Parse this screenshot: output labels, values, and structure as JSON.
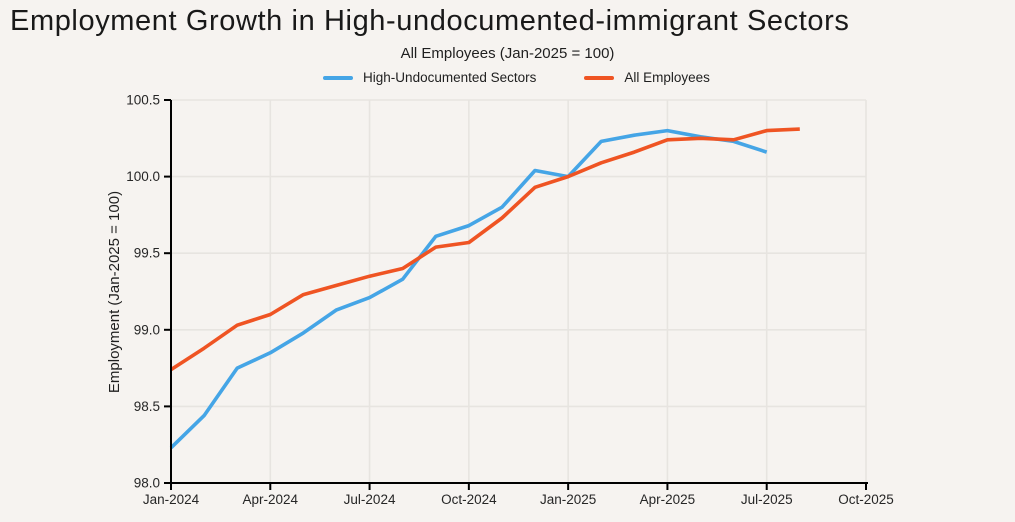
{
  "header": {
    "title": "Employment Growth in High-undocumented-immigrant Sectors",
    "subtitle": "All Employees (Jan-2025 = 100)"
  },
  "colors": {
    "background": "#F6F3F0",
    "grid": "#E7E4E0",
    "axis": "#000000",
    "title_text": "#191919",
    "tick_text": "#262626",
    "blue_series": "#45A5E6",
    "orange_series": "#EF5423"
  },
  "chart_data": {
    "type": "line",
    "title": "Employment Growth in High-undocumented-immigrant Sectors",
    "subtitle": "All Employees (Jan-2025 = 100)",
    "xlabel": "",
    "ylabel": "Employment (Jan-2025 = 100)",
    "ylim": [
      98.0,
      100.5
    ],
    "y_tick_labels": [
      "98.0",
      "98.5",
      "99.0",
      "99.5",
      "100.0",
      "100.5"
    ],
    "x_tick_labels": [
      "Jan-2024",
      "Apr-2024",
      "Jul-2024",
      "Oct-2024",
      "Jan-2025",
      "Apr-2025",
      "Jul-2025",
      "Oct-2025"
    ],
    "x_tick_positions": [
      0,
      3,
      6,
      9,
      12,
      15,
      18,
      21
    ],
    "x_axis_month_span": 21,
    "grid": true,
    "legend_position": "top-center",
    "months": [
      "Jan-2024",
      "Feb-2024",
      "Mar-2024",
      "Apr-2024",
      "May-2024",
      "Jun-2024",
      "Jul-2024",
      "Aug-2024",
      "Sep-2024",
      "Oct-2024",
      "Nov-2024",
      "Dec-2024",
      "Jan-2025",
      "Feb-2025",
      "Mar-2025",
      "Apr-2025",
      "May-2025",
      "Jun-2025",
      "Jul-2025",
      "Aug-2025"
    ],
    "series": [
      {
        "name": "High-Undocumented Sectors",
        "color": "#45A5E6",
        "values": [
          98.23,
          98.44,
          98.75,
          98.85,
          98.98,
          99.13,
          99.21,
          99.33,
          99.61,
          99.68,
          99.8,
          100.04,
          100.0,
          100.23,
          100.27,
          100.3,
          100.26,
          100.23,
          100.16
        ]
      },
      {
        "name": "All Employees",
        "color": "#EF5423",
        "values": [
          98.74,
          98.88,
          99.03,
          99.1,
          99.23,
          99.29,
          99.35,
          99.4,
          99.54,
          99.57,
          99.73,
          99.93,
          100.0,
          100.09,
          100.16,
          100.24,
          100.25,
          100.24,
          100.3,
          100.31
        ]
      }
    ]
  }
}
